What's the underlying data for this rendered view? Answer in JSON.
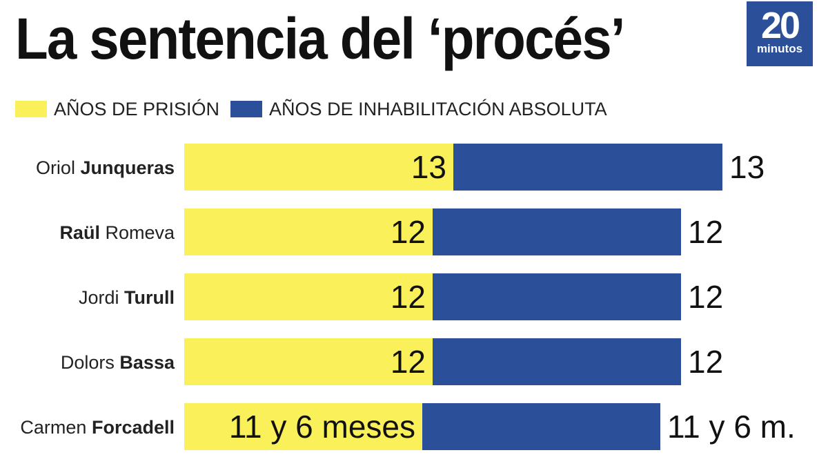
{
  "header": {
    "title": "La sentencia del ‘procés’",
    "logo_number": "20",
    "logo_word": "minutos"
  },
  "colors": {
    "prision": "#f9f05a",
    "inhabilitacion": "#2b5099",
    "logo_bg": "#2b5099",
    "text": "#111111"
  },
  "chart_data": {
    "type": "bar",
    "stacked": true,
    "orientation": "horizontal",
    "legend_placement": "top-left",
    "grid": false,
    "categories": [
      {
        "first": "Oriol",
        "last": "Junqueras",
        "bold": "last"
      },
      {
        "first": "Raül",
        "last": "Romeva",
        "bold": "first"
      },
      {
        "first": "Jordi",
        "last": "Turull",
        "bold": "last"
      },
      {
        "first": "Dolors",
        "last": "Bassa",
        "bold": "last"
      },
      {
        "first": "Carmen",
        "last": "Forcadell",
        "bold": "last"
      }
    ],
    "series": [
      {
        "name": "AÑOS DE PRISIÓN",
        "color": "#f9f05a",
        "values": [
          13,
          12,
          12,
          12,
          11.5
        ],
        "labels": [
          "13",
          "12",
          "12",
          "12",
          "11 y 6 meses"
        ]
      },
      {
        "name": "AÑOS DE INHABILITACIÓN ABSOLUTA",
        "color": "#2b5099",
        "values": [
          13,
          12,
          12,
          12,
          11.5
        ],
        "labels": [
          "13",
          "12",
          "12",
          "12",
          "11 y 6 m."
        ]
      }
    ]
  }
}
